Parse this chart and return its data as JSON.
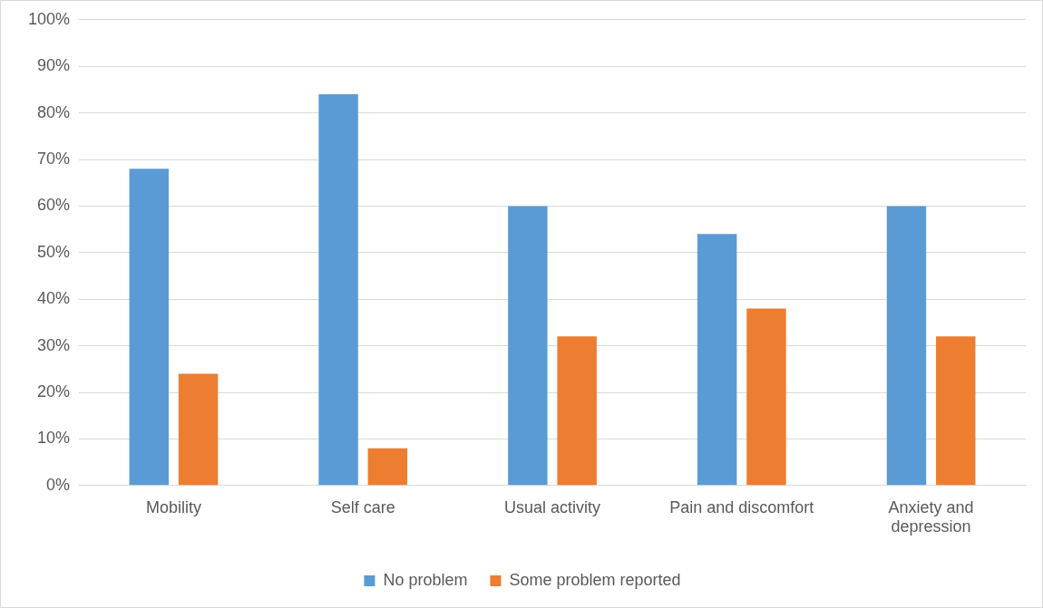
{
  "chart_data": {
    "type": "bar",
    "categories": [
      "Mobility",
      "Self care",
      "Usual activity",
      "Pain and discomfort",
      "Anxiety and depression"
    ],
    "series": [
      {
        "name": "No problem",
        "color": "#5b9bd5",
        "values": [
          68,
          84,
          60,
          54,
          60
        ]
      },
      {
        "name": "Some problem reported",
        "color": "#ed7d31",
        "values": [
          24,
          8,
          32,
          38,
          32
        ]
      }
    ],
    "ylim": [
      0,
      100
    ],
    "yticks": [
      {
        "value": 0,
        "label": "0%"
      },
      {
        "value": 10,
        "label": "10%"
      },
      {
        "value": 20,
        "label": "20%"
      },
      {
        "value": 30,
        "label": "30%"
      },
      {
        "value": 40,
        "label": "40%"
      },
      {
        "value": 50,
        "label": "50%"
      },
      {
        "value": 60,
        "label": "60%"
      },
      {
        "value": 70,
        "label": "70%"
      },
      {
        "value": 80,
        "label": "80%"
      },
      {
        "value": 90,
        "label": "90%"
      },
      {
        "value": 100,
        "label": "100%"
      }
    ],
    "grid": "y",
    "legend": "bottom"
  }
}
